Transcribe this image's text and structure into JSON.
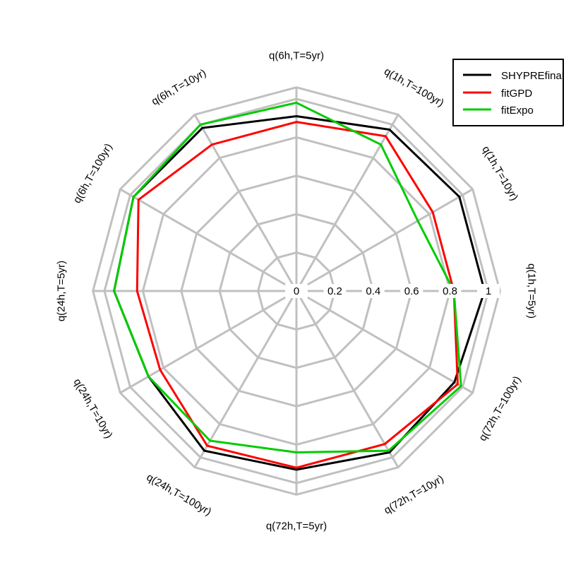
{
  "chart_data": {
    "type": "radar",
    "axes": [
      "q(1h,T=5yr)",
      "q(1h,T=10yr)",
      "q(1h,T=100yr)",
      "q(6h,T=5yr)",
      "q(6h,T=10yr)",
      "q(6h,T=100yr)",
      "q(24h,T=5yr)",
      "q(24h,T=10yr)",
      "q(24h,T=100yr)",
      "q(72h,T=5yr)",
      "q(72h,T=10yr)",
      "q(72h,T=100yr)"
    ],
    "rlim": [
      0,
      1
    ],
    "ticks": [
      0,
      0.2,
      0.4,
      0.6,
      0.8,
      1
    ],
    "tick_labels": [
      "0",
      "0.2",
      "0.4",
      "0.6",
      "0.8",
      "1"
    ],
    "grid": true,
    "legend_position": "top-right",
    "series": [
      {
        "name": "SHYPREfinal",
        "color": "#000000",
        "values": [
          0.98,
          0.98,
          0.97,
          0.91,
          0.98,
          0.98,
          0.95,
          0.89,
          0.96,
          0.93,
          0.97,
          0.95
        ]
      },
      {
        "name": "fitGPD",
        "color": "#ff0000",
        "values": [
          0.82,
          0.82,
          0.93,
          0.88,
          0.88,
          0.95,
          0.83,
          0.82,
          0.93,
          0.92,
          0.92,
          0.97
        ]
      },
      {
        "name": "fitExpo",
        "color": "#00cc00",
        "values": [
          0.82,
          0.73,
          0.88,
          0.98,
          1.0,
          0.98,
          0.95,
          0.89,
          0.9,
          0.84,
          0.96,
          0.99
        ]
      }
    ]
  }
}
